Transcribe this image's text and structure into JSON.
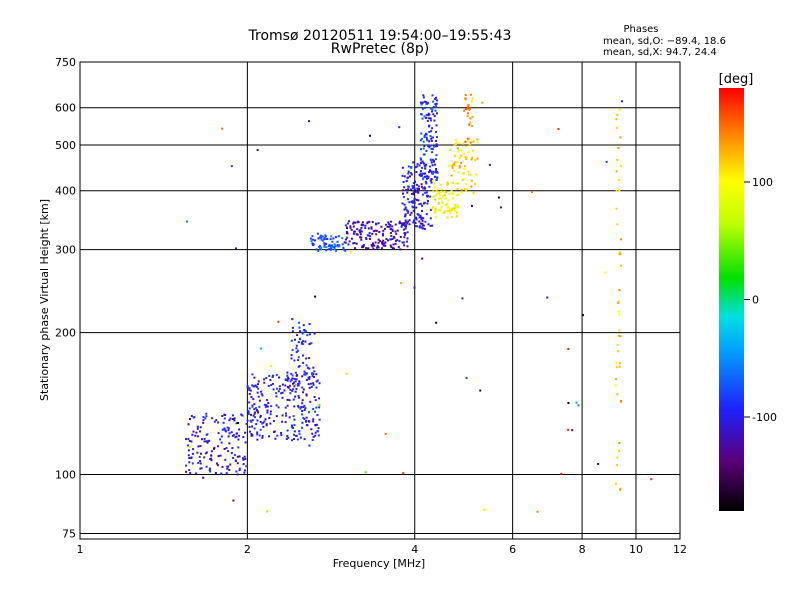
{
  "chart_data": {
    "type": "scatter",
    "title": "Tromsø 20120511 19:54:00–19:55:43",
    "subtitle": "RwPretec (8p)",
    "xlabel": "Frequency [MHz]",
    "ylabel": "Stationary phase Virtual Height [km]",
    "x_scale": "log",
    "y_scale": "log",
    "xlim": [
      1,
      12
    ],
    "ylim": [
      73,
      750
    ],
    "x_ticks": [
      {
        "value": 1,
        "label": "1"
      },
      {
        "value": 2,
        "label": "2"
      },
      {
        "value": 4,
        "label": "4"
      },
      {
        "value": 6,
        "label": "6"
      },
      {
        "value": 8,
        "label": "8"
      },
      {
        "value": 10,
        "label": "10"
      },
      {
        "value": 12,
        "label": "12"
      }
    ],
    "y_ticks": [
      {
        "value": 75,
        "label": "75"
      },
      {
        "value": 100,
        "label": "100"
      },
      {
        "value": 200,
        "label": "200"
      },
      {
        "value": 300,
        "label": "300"
      },
      {
        "value": 400,
        "label": "400"
      },
      {
        "value": 500,
        "label": "500"
      },
      {
        "value": 600,
        "label": "600"
      },
      {
        "value": 750,
        "label": "750"
      }
    ],
    "grid": true,
    "phases_box": {
      "heading": "Phases",
      "line_o": "mean, sd,O: −89.4, 18.6",
      "line_x": "mean, sd,X:  94.7, 24.4"
    },
    "colorbar": {
      "label": "[deg]",
      "min": -180,
      "max": 180,
      "ticks": [
        {
          "value": 100,
          "label": "100"
        },
        {
          "value": 0,
          "label": "0"
        },
        {
          "value": -100,
          "label": "-100"
        }
      ]
    },
    "series": [
      {
        "name": "E-layer trace",
        "clusters": [
          {
            "f": [
              1.55,
              2.0
            ],
            "h": [
              100,
              135
            ],
            "phase": -105,
            "n": 160
          },
          {
            "f": [
              2.0,
              2.7
            ],
            "h": [
              118,
              165
            ],
            "phase": -100,
            "n": 260
          },
          {
            "f": [
              2.4,
              2.65
            ],
            "h": [
              150,
              215
            ],
            "phase": -95,
            "n": 70
          }
        ]
      },
      {
        "name": "F-layer O trace",
        "clusters": [
          {
            "f": [
              2.6,
              3.0
            ],
            "h": [
              298,
              325
            ],
            "phase": -75,
            "n": 70
          },
          {
            "f": [
              3.0,
              3.9
            ],
            "h": [
              300,
              345
            ],
            "phase": -115,
            "n": 170
          },
          {
            "f": [
              3.8,
              4.3
            ],
            "h": [
              330,
              460
            ],
            "phase": -105,
            "n": 170
          },
          {
            "f": [
              4.1,
              4.4
            ],
            "h": [
              420,
              640
            ],
            "phase": -90,
            "n": 130
          }
        ]
      },
      {
        "name": "F-layer X trace",
        "clusters": [
          {
            "f": [
              4.3,
              4.8
            ],
            "h": [
              350,
              420
            ],
            "phase": 95,
            "n": 80
          },
          {
            "f": [
              4.6,
              5.2
            ],
            "h": [
              390,
              520
            ],
            "phase": 110,
            "n": 70
          },
          {
            "f": [
              4.9,
              5.1
            ],
            "h": [
              500,
              640
            ],
            "phase": 135,
            "n": 25
          }
        ]
      },
      {
        "name": "Vertical line 9.3 MHz",
        "clusters": [
          {
            "f": [
              9.2,
              9.4
            ],
            "h": [
              80,
              600
            ],
            "phase": 120,
            "n": 45
          }
        ]
      },
      {
        "name": "Scattered noise",
        "clusters": [
          {
            "f": [
              1.5,
              11.0
            ],
            "h": [
              78,
              620
            ],
            "phase": 0,
            "n": 60
          }
        ]
      }
    ]
  }
}
